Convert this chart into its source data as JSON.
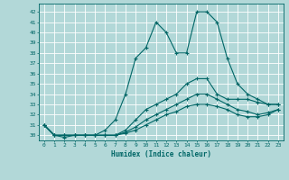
{
  "xlabel": "Humidex (Indice chaleur)",
  "background_color": "#b2d8d8",
  "grid_color": "#ffffff",
  "line_color": "#006666",
  "xlim": [
    -0.5,
    23.5
  ],
  "ylim": [
    29.5,
    42.8
  ],
  "yticks": [
    30,
    31,
    32,
    33,
    34,
    35,
    36,
    37,
    38,
    39,
    40,
    41,
    42
  ],
  "xticks": [
    0,
    1,
    2,
    3,
    4,
    5,
    6,
    7,
    8,
    9,
    10,
    11,
    12,
    13,
    14,
    15,
    16,
    17,
    18,
    19,
    20,
    21,
    22,
    23
  ],
  "series": [
    [
      31,
      30,
      29.8,
      30,
      30,
      30,
      30.5,
      31.5,
      34,
      37.5,
      38.5,
      41,
      40,
      38,
      38,
      42,
      42,
      41,
      37.5,
      35,
      34,
      33.5,
      33,
      33
    ],
    [
      31,
      30,
      30,
      30,
      30,
      30,
      30,
      30,
      30.5,
      31.5,
      32.5,
      33,
      33.5,
      34,
      35,
      35.5,
      35.5,
      34,
      33.5,
      33.5,
      33.5,
      33.2,
      33,
      33
    ],
    [
      31,
      30,
      30,
      30,
      30,
      30,
      30,
      30,
      30.3,
      30.8,
      31.5,
      32,
      32.5,
      33,
      33.5,
      34,
      34,
      33.5,
      33,
      32.5,
      32.3,
      32,
      32.2,
      32.5
    ],
    [
      31,
      30,
      30,
      30,
      30,
      30,
      30,
      30,
      30.2,
      30.5,
      31,
      31.5,
      32,
      32.3,
      32.8,
      33,
      33,
      32.8,
      32.5,
      32,
      31.8,
      31.8,
      32,
      32.5
    ]
  ]
}
